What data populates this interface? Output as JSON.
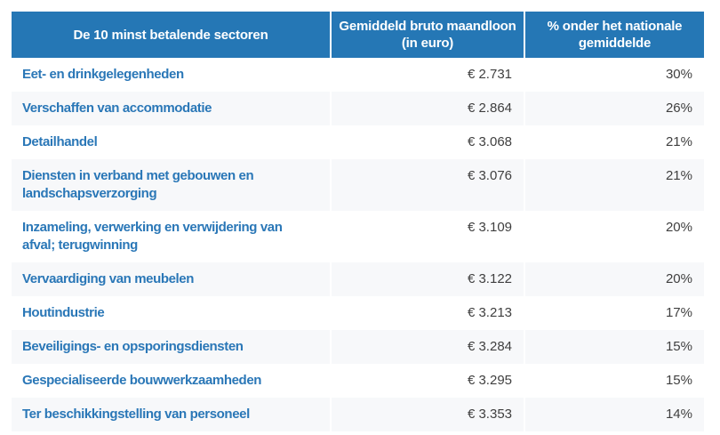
{
  "colors": {
    "header_bg": "#2577b5",
    "header_text": "#ffffff",
    "sector_text": "#2a77b7",
    "value_text": "#3f3f3f",
    "alt_row_bg": "#f7f8fa",
    "page_bg": "#ffffff"
  },
  "table": {
    "header": {
      "sector": "De 10 minst betalende sectoren",
      "wage": "Gemiddeld bruto maandloon\n(in euro)",
      "percent": "% onder het nationale\ngemiddelde"
    },
    "rows": [
      {
        "sector": "Eet- en drinkgelegenheden",
        "wage": "€ 2.731",
        "percent": "30%"
      },
      {
        "sector": "Verschaffen van accommodatie",
        "wage": "€ 2.864",
        "percent": "26%"
      },
      {
        "sector": "Detailhandel",
        "wage": "€ 3.068",
        "percent": "21%"
      },
      {
        "sector": "Diensten in verband met gebouwen en landschapsverzorging",
        "wage": "€ 3.076",
        "percent": "21%"
      },
      {
        "sector": "Inzameling, verwerking en verwijdering van afval; terugwinning",
        "wage": "€ 3.109",
        "percent": "20%"
      },
      {
        "sector": "Vervaardiging van meubelen",
        "wage": "€ 3.122",
        "percent": "20%"
      },
      {
        "sector": "Houtindustrie",
        "wage": "€ 3.213",
        "percent": "17%"
      },
      {
        "sector": "Beveiligings- en opsporingsdiensten",
        "wage": "€ 3.284",
        "percent": "15%"
      },
      {
        "sector": "Gespecialiseerde bouwwerkzaamheden",
        "wage": "€ 3.295",
        "percent": "15%"
      },
      {
        "sector": "Ter beschikkingstelling van personeel",
        "wage": "€ 3.353",
        "percent": "14%"
      }
    ]
  },
  "chart_data": {
    "type": "table",
    "title": "De 10 minst betalende sectoren",
    "columns": [
      "De 10 minst betalende sectoren",
      "Gemiddeld bruto maandloon (in euro)",
      "% onder het nationale gemiddelde"
    ],
    "rows": [
      [
        "Eet- en drinkgelegenheden",
        2731,
        30
      ],
      [
        "Verschaffen van accommodatie",
        2864,
        26
      ],
      [
        "Detailhandel",
        3068,
        21
      ],
      [
        "Diensten in verband met gebouwen en landschapsverzorging",
        3076,
        21
      ],
      [
        "Inzameling, verwerking en verwijdering van afval; terugwinning",
        3109,
        20
      ],
      [
        "Vervaardiging van meubelen",
        3122,
        20
      ],
      [
        "Houtindustrie",
        3213,
        17
      ],
      [
        "Beveiligings- en opsporingsdiensten",
        3284,
        15
      ],
      [
        "Gespecialiseerde bouwwerkzaamheden",
        3295,
        15
      ],
      [
        "Ter beschikkingstelling van personeel",
        3353,
        14
      ]
    ],
    "units": {
      "wage": "EUR gross monthly",
      "percent": "% below national average"
    },
    "layout": {
      "header_background": "#2577b5",
      "zebra_stripes": true,
      "legend": "none"
    }
  }
}
